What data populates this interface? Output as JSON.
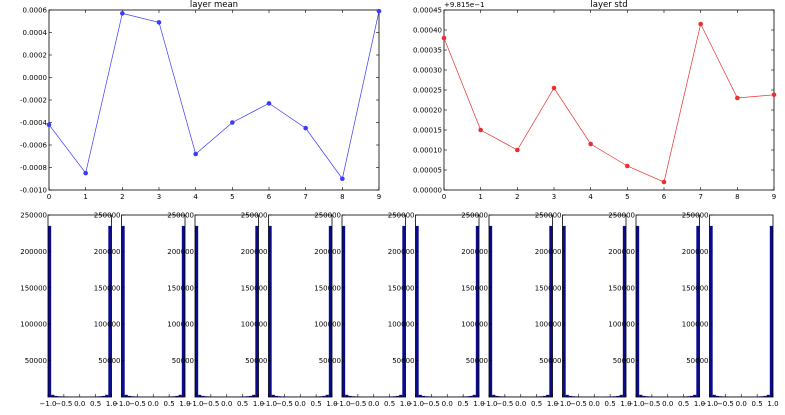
{
  "chart_data": [
    {
      "type": "line",
      "title": "layer mean",
      "x": [
        0,
        1,
        2,
        3,
        4,
        5,
        6,
        7,
        8,
        9
      ],
      "series": [
        {
          "values": [
            -0.00042,
            -0.00085,
            0.00057,
            0.00049,
            -0.00068,
            -0.0004,
            -0.00023,
            -0.00045,
            -0.0009,
            0.00059
          ]
        }
      ],
      "xlim": [
        0,
        9
      ],
      "ylim": [
        -0.001,
        0.0006
      ],
      "xticks": [
        "0",
        "1",
        "2",
        "3",
        "4",
        "5",
        "6",
        "7",
        "8",
        "9"
      ],
      "yticks": [
        "-0.0010",
        "-0.0008",
        "-0.0006",
        "-0.0004",
        "-0.0002",
        "0.0000",
        "0.0002",
        "0.0004",
        "0.0006"
      ],
      "color": "#3a3aff"
    },
    {
      "type": "line",
      "title": "layer std",
      "offset_label": "+9.815e−1",
      "x": [
        0,
        1,
        2,
        3,
        4,
        5,
        6,
        7,
        8,
        9
      ],
      "series": [
        {
          "values": [
            0.00038,
            0.00015,
            0.0001,
            0.000255,
            0.000115,
            6e-05,
            2e-05,
            0.000415,
            0.00023,
            0.000238
          ]
        }
      ],
      "xlim": [
        0,
        9
      ],
      "ylim": [
        0,
        0.00045
      ],
      "xticks": [
        "0",
        "1",
        "2",
        "3",
        "4",
        "5",
        "6",
        "7",
        "8",
        "9"
      ],
      "yticks": [
        "0.00000",
        "0.00005",
        "0.00010",
        "0.00015",
        "0.00020",
        "0.00025",
        "0.00030",
        "0.00035",
        "0.00040",
        "0.00045"
      ],
      "color": "#e83030"
    },
    {
      "type": "bar",
      "subtype": "histogram-row",
      "panel_count": 10,
      "bins": [
        -1.0,
        -0.9,
        -0.8,
        -0.7,
        -0.6,
        -0.5,
        -0.4,
        -0.3,
        -0.2,
        -0.1,
        0.0,
        0.1,
        0.2,
        0.3,
        0.4,
        0.5,
        0.6,
        0.7,
        0.8,
        0.9,
        1.0
      ],
      "counts": [
        235000,
        3000,
        1500,
        1000,
        800,
        700,
        600,
        500,
        500,
        450,
        450,
        500,
        500,
        600,
        700,
        800,
        1000,
        1500,
        3000,
        235000
      ],
      "xlim": [
        -1.0,
        1.0
      ],
      "ylim": [
        0,
        250000
      ],
      "xticks": [
        "−1.0",
        "−0.5",
        "0.0",
        "0.5",
        "1.0"
      ],
      "yticks": [
        "50000",
        "100000",
        "150000",
        "200000",
        "250000"
      ],
      "color": "#0a0a8c"
    }
  ]
}
